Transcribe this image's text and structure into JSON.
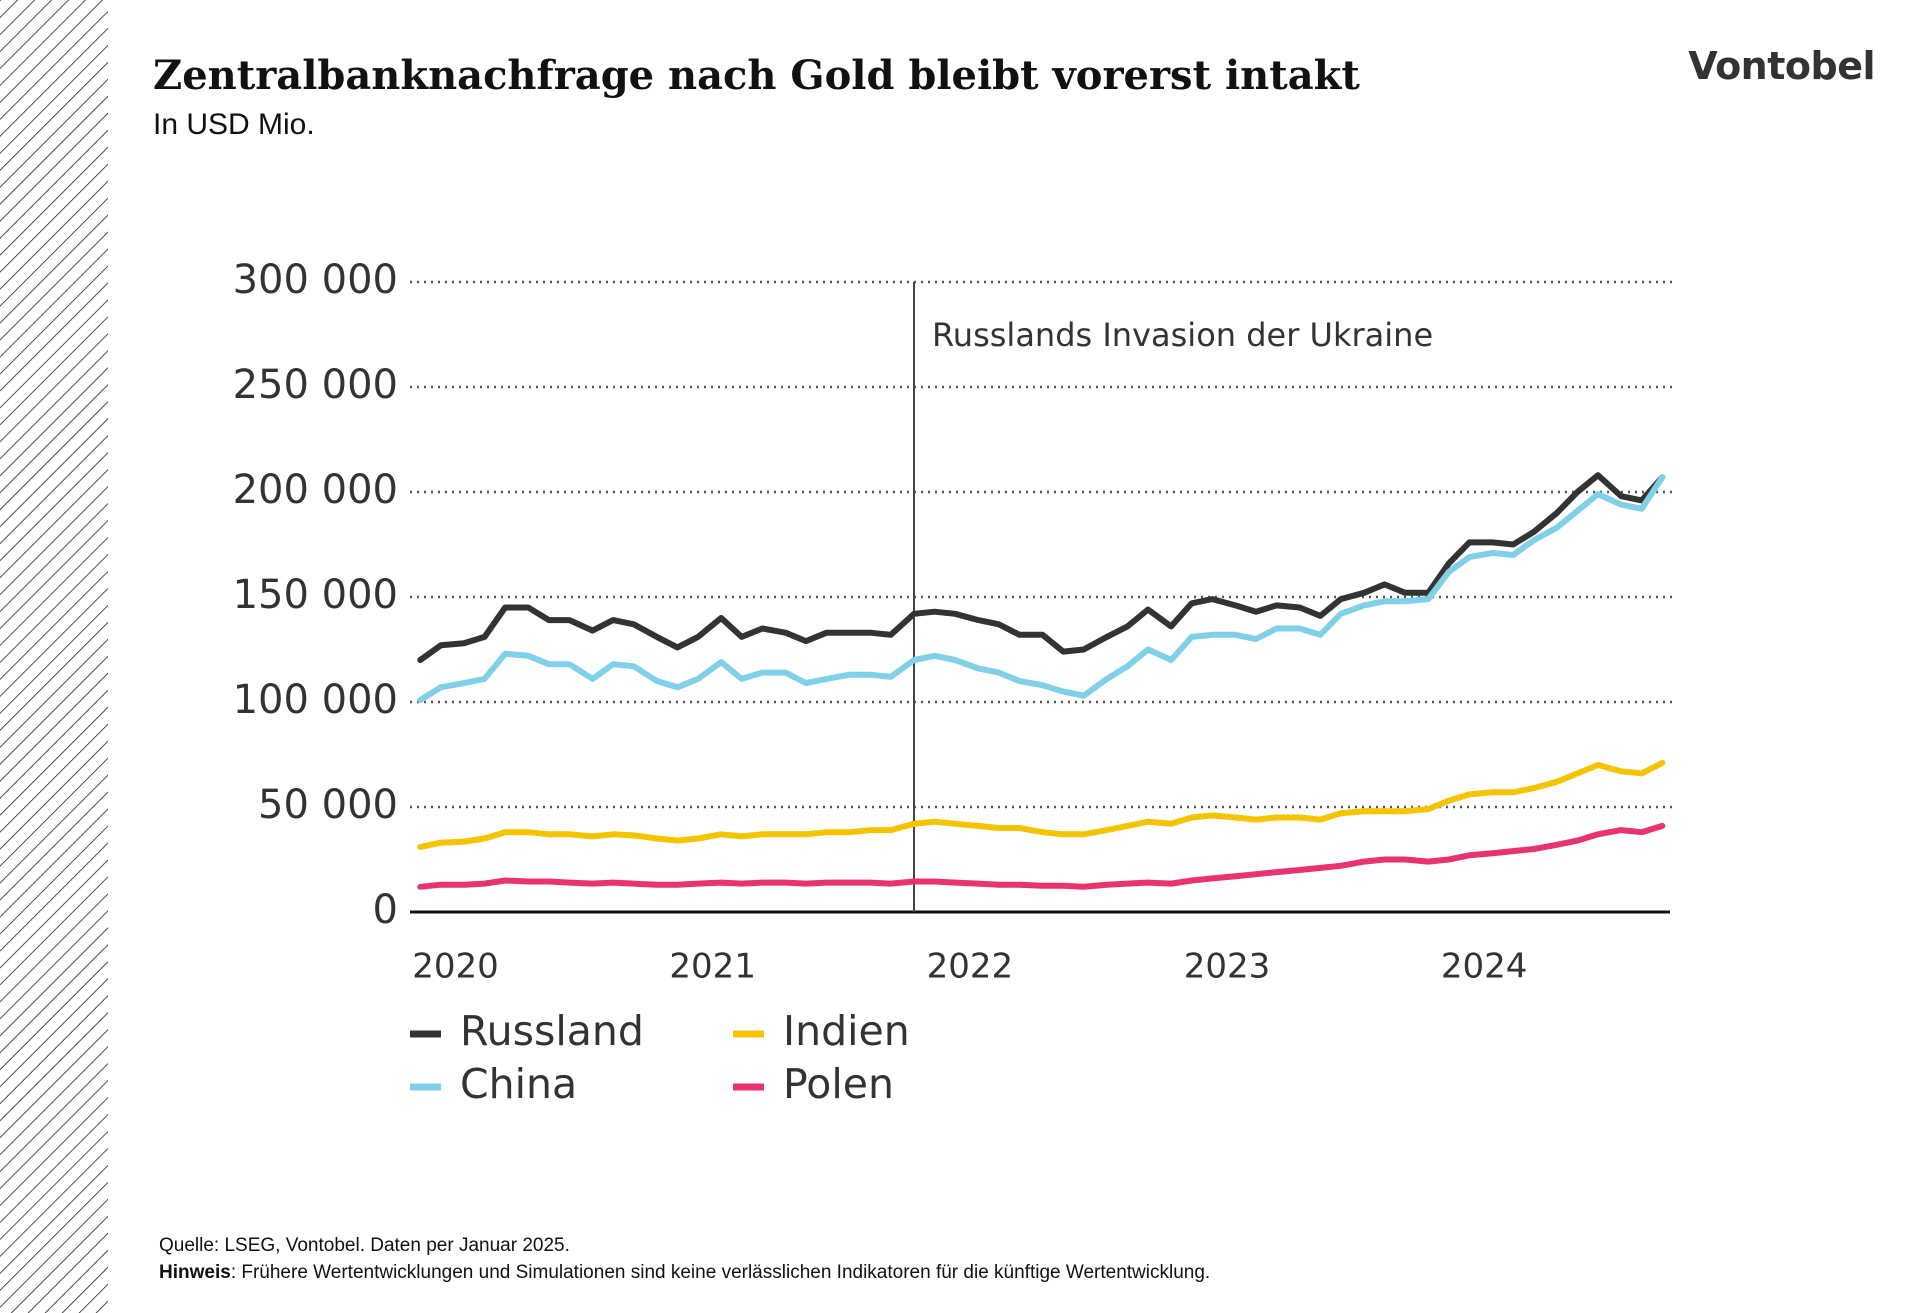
{
  "header": {
    "title": "Zentralbanknachfrage nach Gold bleibt vorerst intakt",
    "subtitle": "In USD Mio.",
    "logo": "Vontobel"
  },
  "chart_data": {
    "type": "line",
    "x": [
      2020.0,
      2020.08,
      2020.17,
      2020.25,
      2020.33,
      2020.42,
      2020.5,
      2020.58,
      2020.67,
      2020.75,
      2020.83,
      2020.92,
      2021.0,
      2021.08,
      2021.17,
      2021.25,
      2021.33,
      2021.42,
      2021.5,
      2021.58,
      2021.67,
      2021.75,
      2021.83,
      2021.92,
      2022.0,
      2022.08,
      2022.17,
      2022.25,
      2022.33,
      2022.42,
      2022.5,
      2022.58,
      2022.67,
      2022.75,
      2022.83,
      2022.92,
      2023.0,
      2023.08,
      2023.17,
      2023.25,
      2023.33,
      2023.42,
      2023.5,
      2023.58,
      2023.67,
      2023.75,
      2023.83,
      2023.92,
      2024.0,
      2024.08,
      2024.17,
      2024.25,
      2024.33,
      2024.42,
      2024.5,
      2024.58,
      2024.67,
      2024.75,
      2024.83
    ],
    "series": [
      {
        "name": "Russland",
        "color": "#333333",
        "values": [
          120000,
          127000,
          128000,
          131000,
          145000,
          145000,
          139000,
          139000,
          134000,
          139000,
          137000,
          131000,
          126000,
          131000,
          140000,
          131000,
          135000,
          133000,
          129000,
          133000,
          133000,
          133000,
          132000,
          142000,
          143000,
          142000,
          139000,
          137000,
          132000,
          132000,
          124000,
          125000,
          131000,
          136000,
          144000,
          136000,
          147000,
          149000,
          146000,
          143000,
          146000,
          145000,
          141000,
          149000,
          152000,
          156000,
          152000,
          152000,
          166000,
          176000,
          176000,
          175000,
          181000,
          190000,
          200000,
          208000,
          198000,
          196000,
          207000
        ]
      },
      {
        "name": "China",
        "color": "#7fd0e8",
        "values": [
          101000,
          107000,
          109000,
          111000,
          123000,
          122000,
          118000,
          118000,
          111000,
          118000,
          117000,
          110000,
          107000,
          111000,
          119000,
          111000,
          114000,
          114000,
          109000,
          111000,
          113000,
          113000,
          112000,
          120000,
          122000,
          120000,
          116000,
          114000,
          110000,
          108000,
          105000,
          103000,
          111000,
          117000,
          125000,
          120000,
          131000,
          132000,
          132000,
          130000,
          135000,
          135000,
          132000,
          142000,
          146000,
          148000,
          148000,
          149000,
          162000,
          169000,
          171000,
          170000,
          177000,
          183000,
          191000,
          199000,
          194000,
          192000,
          207000
        ]
      },
      {
        "name": "Indien",
        "color": "#f5c400",
        "values": [
          31000,
          33000,
          33500,
          35000,
          38000,
          38000,
          37000,
          37000,
          36000,
          37000,
          36500,
          35000,
          34000,
          35000,
          37000,
          36000,
          37000,
          37000,
          37000,
          38000,
          38000,
          39000,
          39000,
          42000,
          43000,
          42000,
          41000,
          40000,
          40000,
          38000,
          37000,
          37000,
          39000,
          41000,
          43000,
          42000,
          45000,
          46000,
          45000,
          44000,
          45000,
          45000,
          44000,
          47000,
          48000,
          48000,
          48000,
          49000,
          53000,
          56000,
          57000,
          57000,
          59000,
          62000,
          66000,
          70000,
          67000,
          66000,
          71000
        ]
      },
      {
        "name": "Polen",
        "color": "#e8336d",
        "values": [
          12000,
          13000,
          13000,
          13500,
          15000,
          14500,
          14500,
          14000,
          13500,
          14000,
          13500,
          13000,
          13000,
          13500,
          14000,
          13500,
          14000,
          14000,
          13500,
          14000,
          14000,
          14000,
          13500,
          14500,
          14500,
          14000,
          13500,
          13000,
          13000,
          12500,
          12500,
          12000,
          13000,
          13500,
          14000,
          13500,
          15000,
          16000,
          17000,
          18000,
          19000,
          20000,
          21000,
          22000,
          24000,
          25000,
          25000,
          24000,
          25000,
          27000,
          28000,
          29000,
          30000,
          32000,
          34000,
          37000,
          39000,
          38000,
          41000
        ]
      }
    ],
    "xlim": [
      2019.96,
      2024.86
    ],
    "xticks": [
      2020,
      2021,
      2022,
      2023,
      2024
    ],
    "ylim": [
      0,
      300000
    ],
    "yticks": [
      0,
      {
        "value": 50000,
        "label": "50 000"
      },
      {
        "value": 100000,
        "label": "100 000"
      },
      {
        "value": 150000,
        "label": "150 000"
      },
      {
        "value": 200000,
        "label": "200 000"
      },
      {
        "value": 250000,
        "label": "250 000"
      },
      {
        "value": 300000,
        "label": "300 000"
      }
    ],
    "grid": true,
    "annotation": {
      "text": "Russlands Invasion der Ukraine",
      "x": 2021.92
    }
  },
  "footer": {
    "source": "Quelle: LSEG, Vontobel. Daten per Januar 2025.",
    "note_label": "Hinweis",
    "note_text": ": Frühere Wertentwicklungen und Simulationen sind keine verlässlichen Indikatoren für die künftige Wertentwicklung."
  }
}
